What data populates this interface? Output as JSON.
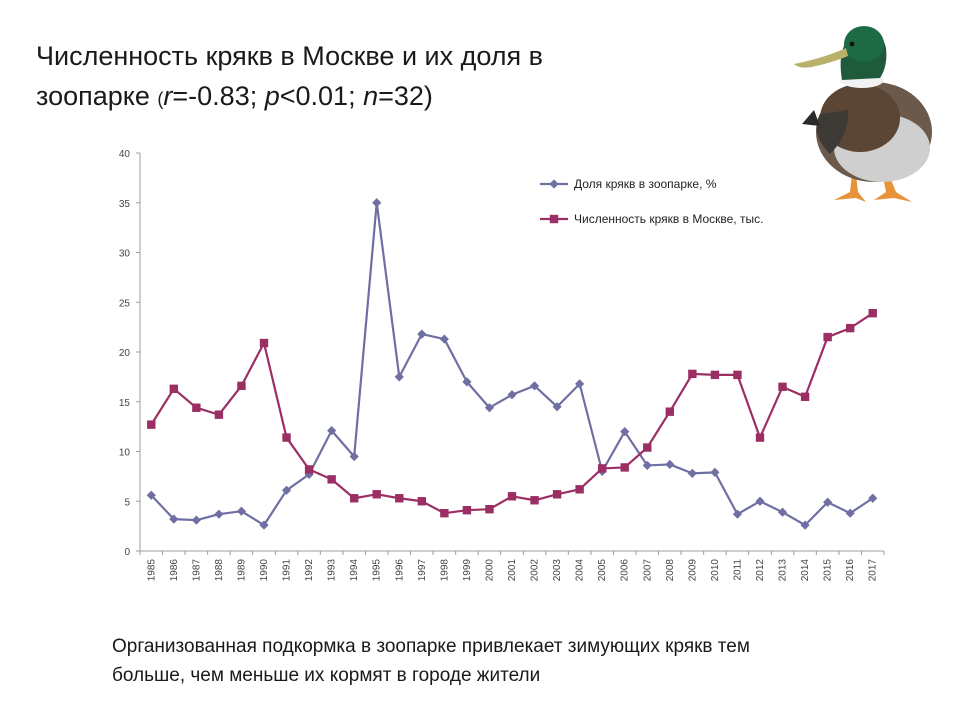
{
  "title": {
    "line1": "Численность крякв в Москве и их доля в",
    "line2_main": "зоопарке ",
    "open_paren": "(",
    "r_symbol": "r",
    "r_value": "=-0.83; ",
    "p_symbol": "p",
    "p_value": "<0.01; ",
    "n_symbol": "n",
    "n_value": "=32)"
  },
  "caption": {
    "line1": "Организованная подкормка в зоопарке привлекает зимующих крякв тем",
    "line2": "больше, чем меньше их кормят в городе жители"
  },
  "colors": {
    "series_zoo": "#6f6fa3",
    "series_moscow": "#9b2f64",
    "axis": "#9e9e9e"
  },
  "chart_data": {
    "type": "line",
    "x": [
      "1985",
      "1986",
      "1987",
      "1988",
      "1989",
      "1990",
      "1991",
      "1992",
      "1993",
      "1994",
      "1995",
      "1996",
      "1997",
      "1998",
      "1999",
      "2000",
      "2001",
      "2002",
      "2003",
      "2004",
      "2005",
      "2006",
      "2007",
      "2008",
      "2009",
      "2010",
      "2011",
      "2012",
      "2013",
      "2014",
      "2015",
      "2016",
      "2017"
    ],
    "ylim": [
      0,
      40
    ],
    "yticks": [
      "0",
      "5",
      "10",
      "15",
      "20",
      "25",
      "30",
      "35",
      "40"
    ],
    "grid": false,
    "legend_position": "top-right",
    "series": [
      {
        "name": "Доля крякв в зоопарке, %",
        "marker": "diamond",
        "values": [
          5.6,
          3.2,
          3.1,
          3.7,
          4.0,
          2.6,
          6.1,
          7.7,
          12.1,
          9.5,
          35.0,
          17.5,
          21.8,
          21.3,
          17.0,
          14.4,
          15.7,
          16.6,
          14.5,
          16.8,
          8.0,
          12.0,
          8.6,
          8.7,
          7.8,
          7.9,
          3.7,
          5.0,
          3.9,
          2.6,
          4.9,
          3.8,
          5.3
        ]
      },
      {
        "name": "Численность крякв в Москве, тыс.",
        "marker": "square",
        "values": [
          12.7,
          16.3,
          14.4,
          13.7,
          16.6,
          20.9,
          11.4,
          8.2,
          7.2,
          5.3,
          5.7,
          5.3,
          5.0,
          3.8,
          4.1,
          4.2,
          5.5,
          5.1,
          5.7,
          6.2,
          8.3,
          8.4,
          10.4,
          14.0,
          17.8,
          17.7,
          17.7,
          11.4,
          16.5,
          15.5,
          21.5,
          22.4,
          23.9
        ]
      }
    ]
  }
}
